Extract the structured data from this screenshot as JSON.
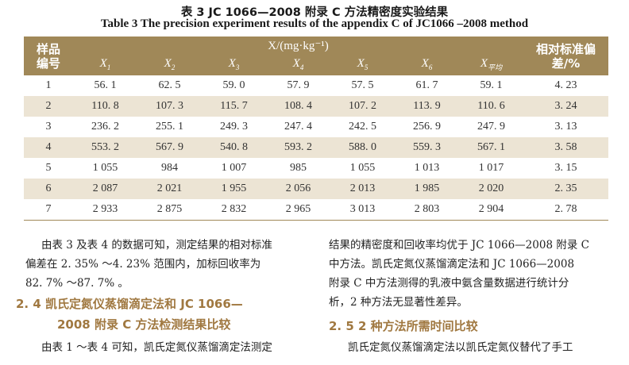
{
  "caption_cn": "表 3   JC 1066—2008 附录 C 方法精密度实验结果",
  "caption_en": "Table 3   The precision experiment results of the appendix C of JC1066 –2008 method",
  "table": {
    "header_id": "样品编号",
    "header_group": "X/(mg·kg⁻¹)",
    "header_rsd": "相对标准偏差/%",
    "cols": [
      "X",
      "X",
      "X",
      "X",
      "X",
      "X",
      "X"
    ],
    "subs": [
      "1",
      "2",
      "3",
      "4",
      "5",
      "6",
      "平均"
    ],
    "rows": [
      [
        "1",
        "56. 1",
        "62. 5",
        "59. 0",
        "57. 9",
        "57. 5",
        "61. 7",
        "59. 1",
        "4. 23"
      ],
      [
        "2",
        "110. 8",
        "107. 3",
        "115. 7",
        "108. 4",
        "107. 2",
        "113. 9",
        "110. 6",
        "3. 24"
      ],
      [
        "3",
        "236. 2",
        "255. 1",
        "249. 3",
        "247. 4",
        "242. 5",
        "256. 9",
        "247. 9",
        "3. 13"
      ],
      [
        "4",
        "553. 2",
        "567. 9",
        "540. 8",
        "593. 2",
        "588. 0",
        "559. 3",
        "567. 1",
        "3. 58"
      ],
      [
        "5",
        "1 055",
        "984",
        "1 007",
        "985",
        "1 055",
        "1 013",
        "1 017",
        "3. 15"
      ],
      [
        "6",
        "2 087",
        "2 021",
        "1 955",
        "2 056",
        "2 013",
        "1 985",
        "2 020",
        "2. 35"
      ],
      [
        "7",
        "2 933",
        "2 875",
        "2 832",
        "2 965",
        "3 013",
        "2 803",
        "2 904",
        "2. 78"
      ]
    ]
  },
  "left": {
    "p1_l1": "由表 3 及表 4 的数据可知，测定结果的相对标准",
    "p1_l2": "偏差在 2. 35% ～4. 23% 范围内，加标回收率为",
    "p1_l3": "82. 7% ～87. 7% 。",
    "h24_l1": "2. 4   凯氏定氮仪蒸馏滴定法和 JC 1066—",
    "h24_l2": "2008 附录 C 方法检测结果比较",
    "p2_l1": "由表 1 ～表 4 可知，凯氏定氮仪蒸馏滴定法测定"
  },
  "right": {
    "p1_l1": "结果的精密度和回收率均优于 JC 1066—2008 附录 C",
    "p1_l2": "中方法。凯氏定氮仪蒸馏滴定法和 JC 1066—2008",
    "p1_l3": "附录 C 中方法测得的乳液中氨含量数据进行统计分",
    "p1_l4": "析，2 种方法无显著性差异。",
    "h25": "2. 5   2 种方法所需时间比较",
    "p2_l1": "凯氏定氮仪蒸馏滴定法以凯氏定氮仪替代了手工"
  }
}
